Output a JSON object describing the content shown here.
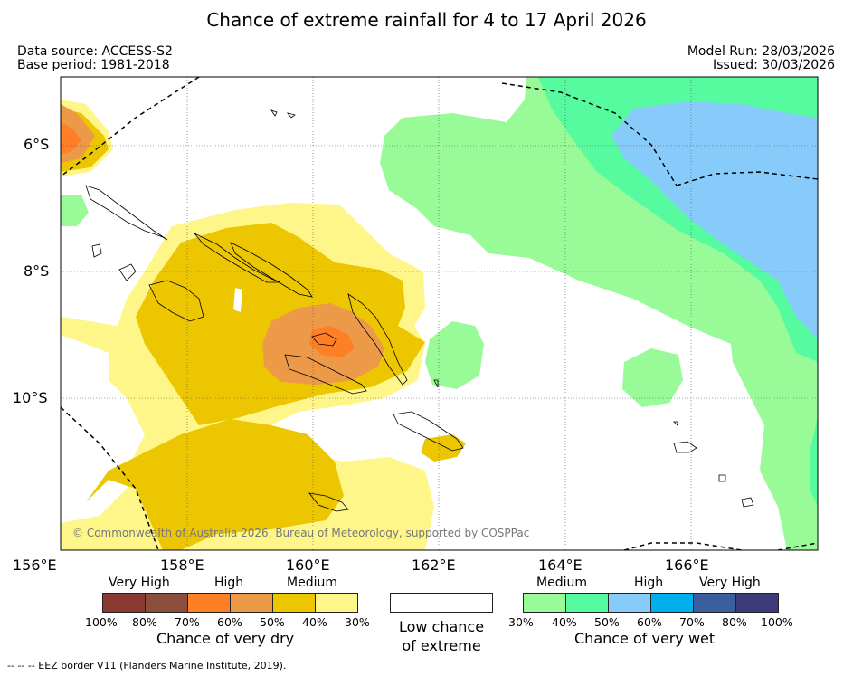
{
  "title": "Chance of extreme rainfall for 4 to 17 April 2026",
  "meta": {
    "data_source": "Data source: ACCESS-S2",
    "base_period": "Base period: 1981-2018",
    "model_run": "Model Run: 28/03/2026",
    "issued": "Issued: 30/03/2026"
  },
  "axes": {
    "lon_labels": [
      "156°E",
      "158°E",
      "160°E",
      "162°E",
      "164°E",
      "166°E"
    ],
    "lat_labels": [
      "6°S",
      "8°S",
      "10°S"
    ]
  },
  "copyright": "© Commonwealth of Australia 2026, Bureau of Meteorology, supported by COSPPac",
  "legend": {
    "dry": {
      "sections": [
        "Very High",
        "High",
        "Medium"
      ],
      "percents": [
        "100%",
        "80%",
        "70%",
        "60%",
        "50%",
        "40%",
        "30%"
      ],
      "colors": [
        "#8b3a32",
        "#8c4e3c",
        "#ff7f27",
        "#ec9a48",
        "#ecc600",
        "#fff68a"
      ],
      "title": "Chance of very dry"
    },
    "low": {
      "title_line1": "Low chance",
      "title_line2": "of extreme",
      "color": "#ffffff"
    },
    "wet": {
      "sections": [
        "Medium",
        "High",
        "Very High"
      ],
      "percents": [
        "30%",
        "40%",
        "50%",
        "60%",
        "70%",
        "80%",
        "100%"
      ],
      "colors": [
        "#99fb98",
        "#55fb9e",
        "#87cbfb",
        "#00b0ec",
        "#3b5e9e",
        "#3c3a78"
      ],
      "title": "Chance of very wet"
    }
  },
  "footnote": "--  --  -- EEZ border V11 (Flanders Marine Institute, 2019)."
}
